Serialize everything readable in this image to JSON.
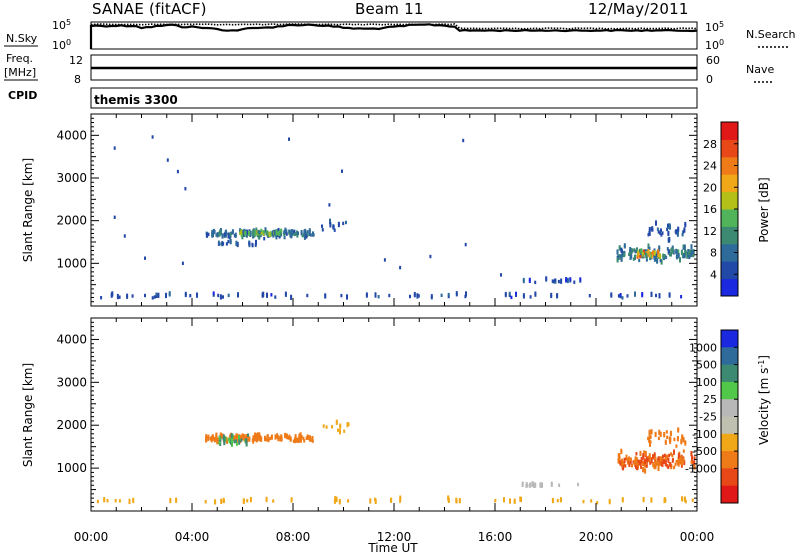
{
  "header": {
    "station": "SANAE (fitACF)",
    "beam": "Beam 11",
    "date": "12/May/2011"
  },
  "top_panels": {
    "nsky_label": "N.Sky",
    "nsky_ticks": [
      "10^5",
      "10^0"
    ],
    "nsearch_label": "N.Search",
    "nsearch_ticks": [
      "10^5",
      "10^0"
    ],
    "freq_label": "Freq.",
    "freq_unit": "[MHz]",
    "freq_ticks": [
      "12",
      "8"
    ],
    "nave_label": "Nave",
    "nave_ticks": [
      "60",
      "0"
    ],
    "cpid_label": "CPID",
    "cpid_value": "themis 3300"
  },
  "colors": {
    "power_scale": [
      "#1a28e0",
      "#2248a8",
      "#2e6a9a",
      "#3c8a72",
      "#52b45a",
      "#b4c018",
      "#f0a818",
      "#ef7a18",
      "#e84818",
      "#e01818"
    ],
    "velocity_scale": [
      "#e01818",
      "#e84818",
      "#ef7a18",
      "#f0a818",
      "#c0c0b0",
      "#b8b8b8",
      "#52c84a",
      "#3c8a72",
      "#2e6a9a",
      "#1a28e0"
    ]
  },
  "chart_data": [
    {
      "type": "heatmap",
      "title": "Power",
      "ylabel": "Slant Range [km]",
      "xlabel": "",
      "xlim": [
        "00:00",
        "24:00"
      ],
      "ylim": [
        0,
        4500
      ],
      "y_ticks": [
        "1000",
        "2000",
        "3000",
        "4000"
      ],
      "x_ticks": [
        "00:00",
        "04:00",
        "08:00",
        "12:00",
        "16:00",
        "20:00",
        "00:00"
      ],
      "colorbar": {
        "label": "Power [dB]",
        "ticks": [
          "4",
          "8",
          "12",
          "16",
          "20",
          "24",
          "28"
        ],
        "range": [
          0,
          32
        ]
      },
      "clusters": [
        {
          "t_start": 4.5,
          "t_end": 8.8,
          "range_center": 1680,
          "range_spread": 120,
          "value_mean": 8,
          "n": 120
        },
        {
          "t_start": 5.8,
          "t_end": 7.5,
          "range_center": 1700,
          "range_spread": 60,
          "value_mean": 14,
          "n": 40
        },
        {
          "t_start": 5.0,
          "t_end": 6.5,
          "range_center": 1450,
          "range_spread": 80,
          "value_mean": 6,
          "n": 15
        },
        {
          "t_start": 9.0,
          "t_end": 10.2,
          "range_center": 1900,
          "range_spread": 180,
          "value_mean": 6,
          "n": 10
        },
        {
          "t_start": 20.8,
          "t_end": 23.9,
          "range_center": 1200,
          "range_spread": 260,
          "value_mean": 9,
          "n": 120
        },
        {
          "t_start": 21.5,
          "t_end": 22.5,
          "range_center": 1200,
          "range_spread": 100,
          "value_mean": 20,
          "n": 25
        },
        {
          "t_start": 22.0,
          "t_end": 23.5,
          "range_center": 1700,
          "range_spread": 300,
          "value_mean": 6,
          "n": 30
        },
        {
          "t_start": 17.0,
          "t_end": 19.5,
          "range_center": 580,
          "range_spread": 60,
          "value_mean": 5,
          "n": 15
        },
        {
          "t_start": 0.0,
          "t_end": 24.0,
          "range_center": 230,
          "range_spread": 60,
          "value_mean": 5,
          "n": 70
        }
      ],
      "points": [
        {
          "t": 2.4,
          "r": 3960,
          "v": 5
        },
        {
          "t": 0.9,
          "r": 3700,
          "v": 5
        },
        {
          "t": 3.0,
          "r": 3420,
          "v": 5
        },
        {
          "t": 3.4,
          "r": 3150,
          "v": 5
        },
        {
          "t": 7.8,
          "r": 3910,
          "v": 5
        },
        {
          "t": 9.9,
          "r": 3160,
          "v": 5
        },
        {
          "t": 14.7,
          "r": 3880,
          "v": 5
        },
        {
          "t": 0.9,
          "r": 2080,
          "v": 5
        },
        {
          "t": 1.3,
          "r": 1640,
          "v": 5
        },
        {
          "t": 2.1,
          "r": 1120,
          "v": 5
        },
        {
          "t": 3.7,
          "r": 2750,
          "v": 5
        },
        {
          "t": 11.6,
          "r": 1080,
          "v": 5
        },
        {
          "t": 12.2,
          "r": 900,
          "v": 5
        },
        {
          "t": 13.4,
          "r": 1160,
          "v": 5
        },
        {
          "t": 14.8,
          "r": 1440,
          "v": 5
        },
        {
          "t": 16.2,
          "r": 730,
          "v": 5
        },
        {
          "t": 3.6,
          "r": 1000,
          "v": 5
        },
        {
          "t": 9.4,
          "r": 2370,
          "v": 5
        }
      ]
    },
    {
      "type": "heatmap",
      "title": "Velocity",
      "ylabel": "Slant Range [km]",
      "xlabel": "Time UT",
      "xlim": [
        "00:00",
        "24:00"
      ],
      "ylim": [
        0,
        4500
      ],
      "y_ticks": [
        "1000",
        "2000",
        "3000",
        "4000"
      ],
      "x_ticks": [
        "00:00",
        "04:00",
        "08:00",
        "12:00",
        "16:00",
        "20:00",
        "00:00"
      ],
      "colorbar": {
        "label": "Velocity [m s^-1]",
        "ticks": [
          "1000",
          "500",
          "100",
          "25",
          "-25",
          "-100",
          "-500",
          "-1000"
        ]
      },
      "clusters": [
        {
          "t_start": 4.5,
          "t_end": 8.8,
          "range_center": 1680,
          "range_spread": 120,
          "value_mean": -300,
          "n": 130
        },
        {
          "t_start": 5.0,
          "t_end": 6.2,
          "range_center": 1650,
          "range_spread": 150,
          "value_mean": 100,
          "n": 30
        },
        {
          "t_start": 9.0,
          "t_end": 10.2,
          "range_center": 1900,
          "range_spread": 180,
          "value_mean": -60,
          "n": 10
        },
        {
          "t_start": 20.8,
          "t_end": 23.9,
          "range_center": 1150,
          "range_spread": 260,
          "value_mean": -500,
          "n": 150
        },
        {
          "t_start": 22.0,
          "t_end": 23.5,
          "range_center": 1700,
          "range_spread": 300,
          "value_mean": -300,
          "n": 30
        },
        {
          "t_start": 17.0,
          "t_end": 19.5,
          "range_center": 580,
          "range_spread": 60,
          "value_mean": 20,
          "n": 15
        },
        {
          "t_start": 0.0,
          "t_end": 24.0,
          "range_center": 230,
          "range_spread": 60,
          "value_mean": -60,
          "n": 60
        }
      ]
    }
  ]
}
